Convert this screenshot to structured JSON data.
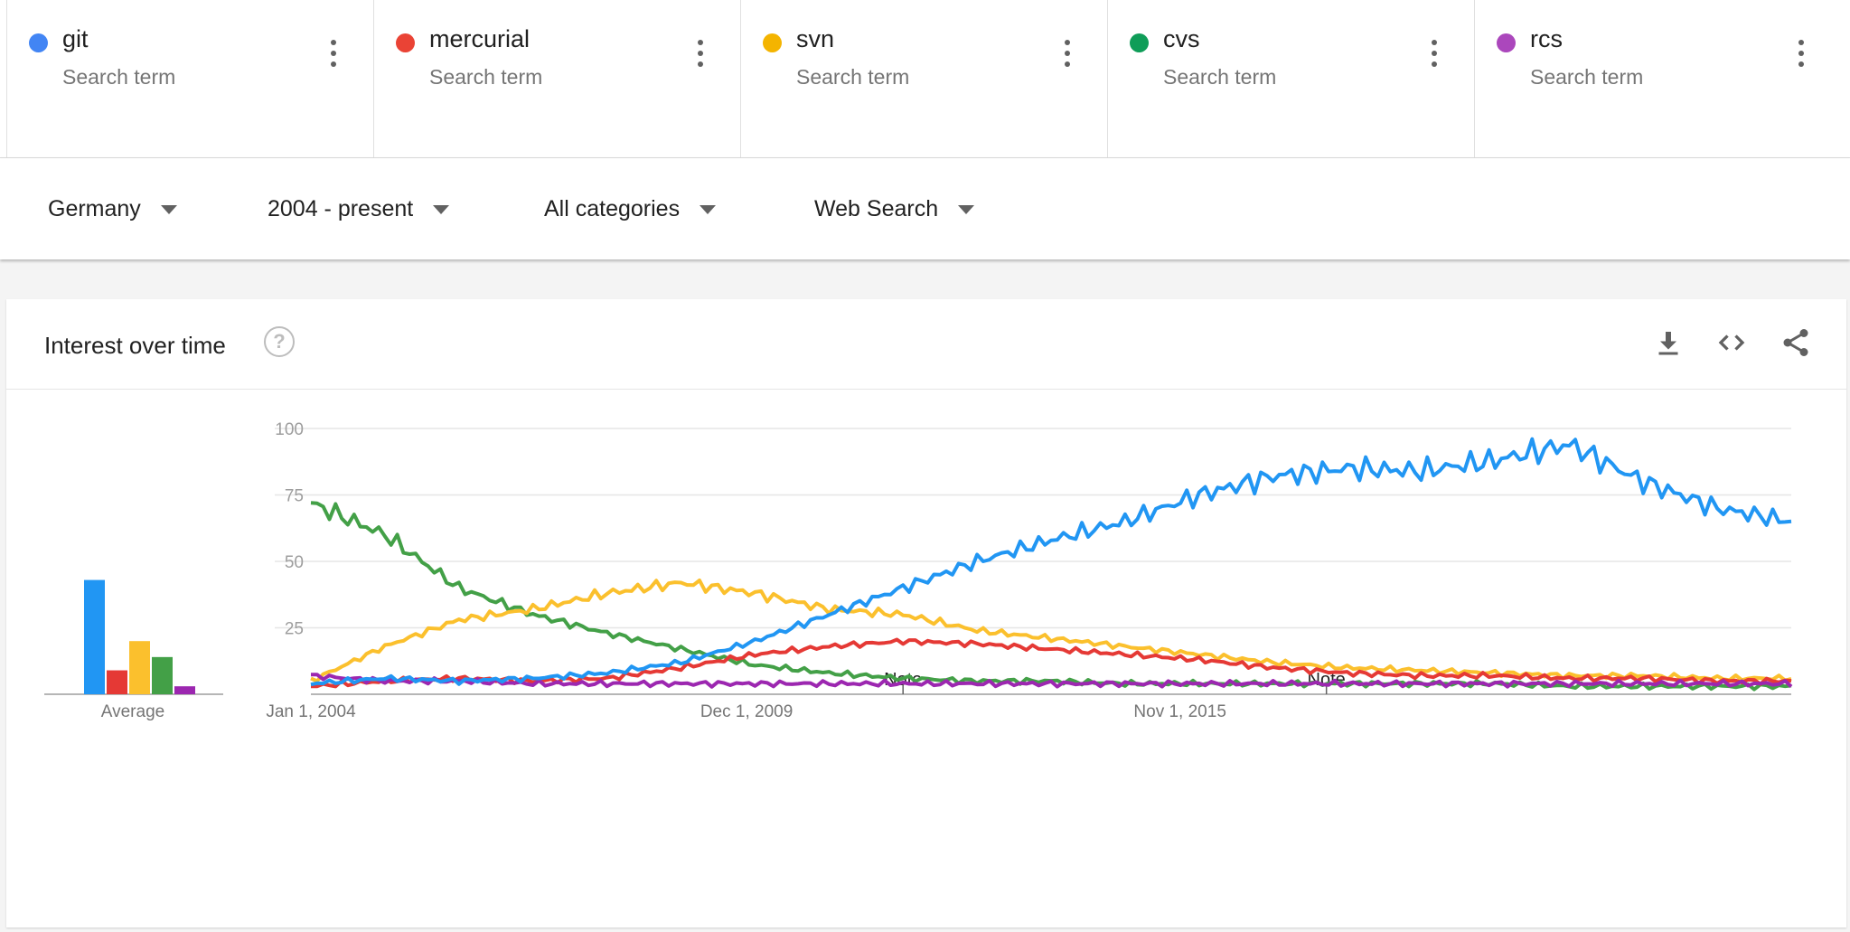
{
  "terms": [
    {
      "name": "git",
      "sub": "Search term",
      "color": "#4285f4"
    },
    {
      "name": "mercurial",
      "sub": "Search term",
      "color": "#ea4335"
    },
    {
      "name": "svn",
      "sub": "Search term",
      "color": "#f4b400"
    },
    {
      "name": "cvs",
      "sub": "Search term",
      "color": "#0f9d58"
    },
    {
      "name": "rcs",
      "sub": "Search term",
      "color": "#ab47bc"
    }
  ],
  "filters": {
    "region": "Germany",
    "time": "2004 - present",
    "category": "All categories",
    "property": "Web Search"
  },
  "card": {
    "title": "Interest over time",
    "help_icon": "help-circle-icon",
    "actions": [
      "download-icon",
      "embed-code-icon",
      "share-icon"
    ]
  },
  "average": {
    "label": "Average",
    "values": [
      {
        "term": "git",
        "value": 43
      },
      {
        "term": "mercurial",
        "value": 9
      },
      {
        "term": "svn",
        "value": 20
      },
      {
        "term": "cvs",
        "value": 14
      },
      {
        "term": "rcs",
        "value": 3
      }
    ]
  },
  "chart_data": {
    "type": "line",
    "title": "",
    "xlabel": "",
    "ylabel": "",
    "ylim": [
      0,
      100
    ],
    "yticks": [
      25,
      50,
      75,
      100
    ],
    "xtick_labels": [
      "Jan 1, 2004",
      "Dec 1, 2009",
      "Nov 1, 2015"
    ],
    "grid": true,
    "annotations": [
      {
        "x": "2010-01",
        "text": "Note"
      },
      {
        "x": "2016-01",
        "text": "Note"
      }
    ],
    "x": [
      "2004",
      "2005",
      "2006",
      "2007",
      "2008",
      "2009",
      "2010",
      "2011",
      "2012",
      "2013",
      "2014",
      "2015",
      "2016",
      "2017",
      "2018",
      "2019",
      "2020",
      "2021",
      "2022",
      "2023",
      "2024"
    ],
    "series": [
      {
        "name": "git",
        "color": "#2196f3",
        "values": [
          4,
          6,
          5,
          6,
          8,
          12,
          20,
          30,
          40,
          50,
          58,
          65,
          75,
          82,
          85,
          84,
          88,
          94,
          80,
          70,
          65
        ]
      },
      {
        "name": "mercurial",
        "color": "#e53935",
        "values": [
          3,
          5,
          6,
          5,
          6,
          10,
          15,
          18,
          20,
          19,
          17,
          15,
          13,
          10,
          8,
          7,
          7,
          6,
          6,
          5,
          5
        ]
      },
      {
        "name": "svn",
        "color": "#fbc02d",
        "values": [
          5,
          18,
          28,
          32,
          38,
          42,
          38,
          32,
          30,
          24,
          21,
          18,
          15,
          12,
          10,
          9,
          8,
          7,
          7,
          6,
          6
        ]
      },
      {
        "name": "cvs",
        "color": "#43a047",
        "values": [
          72,
          60,
          40,
          30,
          23,
          17,
          11,
          8,
          6,
          5,
          5,
          4,
          4,
          4,
          4,
          4,
          4,
          3,
          3,
          3,
          3
        ]
      },
      {
        "name": "rcs",
        "color": "#9c27b0",
        "values": [
          7,
          5,
          5,
          4,
          4,
          4,
          4,
          4,
          4,
          4,
          4,
          4,
          4,
          4,
          4,
          4,
          4,
          4,
          4,
          4,
          4
        ]
      }
    ]
  }
}
